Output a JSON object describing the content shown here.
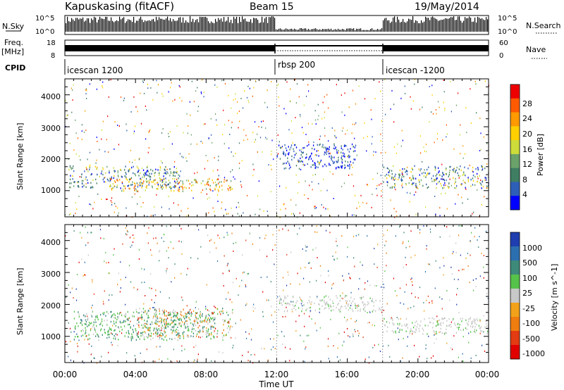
{
  "header": {
    "station": "Kapuskasing (fitACF)",
    "beam": "Beam 15",
    "date": "19/May/2014"
  },
  "summary": {
    "nsky_label": "N.Sky",
    "nsky_ticks": [
      "10^5",
      "10^0"
    ],
    "freq_label_1": "Freq.",
    "freq_label_2": "[MHz]",
    "freq_ticks": [
      "18",
      "8"
    ],
    "cpid_label": "CPID",
    "nsearch_label": "N.Search",
    "nsearch_ticks": [
      "10^5",
      "10^0"
    ],
    "nave_label": "Nave",
    "nave_ticks": [
      "60",
      "0"
    ],
    "cpid_segments": [
      {
        "label": "icescan 1200",
        "start_hour": 0
      },
      {
        "label": "rbsp 200",
        "start_hour": 12
      },
      {
        "label": "icescan -1200",
        "start_hour": 18
      }
    ]
  },
  "chart_data": [
    {
      "type": "heatmap",
      "quantity": "power",
      "ylabel": "Slant Range [km]",
      "xlim": [
        0,
        24
      ],
      "ylim": [
        180,
        4500
      ],
      "yticks": [
        "1000",
        "2000",
        "3000",
        "4000"
      ],
      "colorbar": {
        "label": "Power [dB]",
        "ticks": [
          "4",
          "8",
          "12",
          "16",
          "20",
          "24",
          "28"
        ],
        "colors": [
          "#0000ff",
          "#2e5fb8",
          "#3f7e63",
          "#6ba26a",
          "#cddc3a",
          "#ffd000",
          "#ff9a00",
          "#ff5a00",
          "#ee0000"
        ]
      },
      "echo_regions": [
        {
          "t0": 0.2,
          "t1": 6.5,
          "r0": 1100,
          "r1": 1800,
          "level": "mixed"
        },
        {
          "t0": 2.5,
          "t1": 9.5,
          "r0": 1000,
          "r1": 1400,
          "level": "high"
        },
        {
          "t0": 12.0,
          "t1": 16.5,
          "r0": 1700,
          "r1": 2500,
          "level": "low"
        },
        {
          "t0": 18.0,
          "t1": 24.0,
          "r0": 1100,
          "r1": 1800,
          "level": "mixed"
        }
      ]
    },
    {
      "type": "heatmap",
      "quantity": "velocity",
      "ylabel": "Slant Range [km]",
      "xlabel": "Time UT",
      "xlim": [
        0,
        24
      ],
      "ylim": [
        180,
        4500
      ],
      "xticks": [
        "00:00",
        "04:00",
        "08:00",
        "12:00",
        "16:00",
        "20:00",
        "00:00"
      ],
      "yticks": [
        "1000",
        "2000",
        "3000",
        "4000"
      ],
      "colorbar": {
        "label": "Velocity [m s^-1]",
        "ticks": [
          "1000",
          "500",
          "100",
          "25",
          "-25",
          "-100",
          "-500",
          "-1000"
        ],
        "colors": [
          "#1f3fb0",
          "#2c6fb0",
          "#3e8a7a",
          "#55c24a",
          "#c8c8c8",
          "#f2a21a",
          "#f07d10",
          "#e33b12",
          "#e00000"
        ]
      },
      "echo_regions": [
        {
          "t0": 0.5,
          "t1": 8.5,
          "r0": 900,
          "r1": 1800,
          "level": "positive"
        },
        {
          "t0": 4.0,
          "t1": 9.5,
          "r0": 1000,
          "r1": 1900,
          "level": "mixed"
        },
        {
          "t0": 12.0,
          "t1": 18.0,
          "r0": 1800,
          "r1": 2300,
          "level": "near-zero"
        },
        {
          "t0": 18.0,
          "t1": 24.0,
          "r0": 1100,
          "r1": 1600,
          "level": "near-zero"
        }
      ]
    }
  ]
}
